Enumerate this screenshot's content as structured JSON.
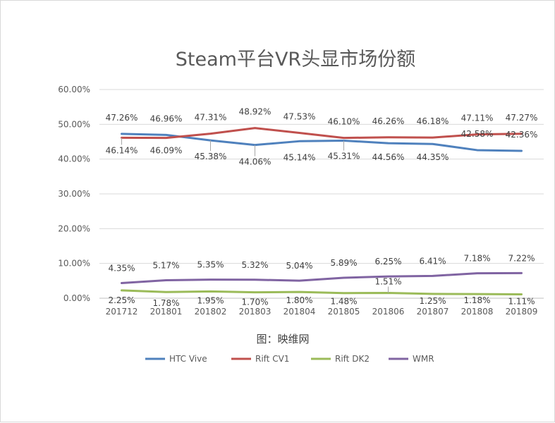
{
  "chart_data": {
    "type": "line",
    "title": "Steam平台VR头显市场份额",
    "caption": "图：映维网",
    "xlabel": "",
    "ylabel": "",
    "categories": [
      "201712",
      "201801",
      "201802",
      "201803",
      "201804",
      "201805",
      "201806",
      "201807",
      "201808",
      "201809"
    ],
    "y_ticks": [
      "0.00%",
      "10.00%",
      "20.00%",
      "30.00%",
      "40.00%",
      "50.00%",
      "60.00%"
    ],
    "ylim": [
      0,
      60
    ],
    "grid": true,
    "legend_position": "bottom",
    "series": [
      {
        "name": "HTC Vive",
        "color": "#4f81bd",
        "values": [
          47.26,
          46.96,
          45.38,
          44.06,
          45.14,
          45.31,
          44.56,
          44.35,
          42.58,
          42.36
        ],
        "labels": [
          "47.26%",
          "46.96%",
          "45.38%",
          "44.06%",
          "45.14%",
          "45.31%",
          "44.56%",
          "44.35%",
          "42.58%",
          "42.36%"
        ]
      },
      {
        "name": "Rift CV1",
        "color": "#c0504d",
        "values": [
          46.14,
          46.09,
          47.31,
          48.92,
          47.53,
          46.1,
          46.26,
          46.18,
          47.11,
          47.27
        ],
        "labels": [
          "46.14%",
          "46.09%",
          "47.31%",
          "48.92%",
          "47.53%",
          "46.10%",
          "46.26%",
          "46.18%",
          "47.11%",
          "47.27%"
        ]
      },
      {
        "name": "Rift DK2",
        "color": "#9bbb59",
        "values": [
          2.25,
          1.78,
          1.95,
          1.7,
          1.8,
          1.48,
          1.51,
          1.25,
          1.18,
          1.11
        ],
        "labels": [
          "2.25%",
          "1.78%",
          "1.95%",
          "1.70%",
          "1.80%",
          "1.48%",
          "1.51%",
          "1.25%",
          "1.18%",
          "1.11%"
        ]
      },
      {
        "name": "WMR",
        "color": "#8064a2",
        "values": [
          4.35,
          5.17,
          5.35,
          5.32,
          5.04,
          5.89,
          6.25,
          6.41,
          7.18,
          7.22
        ],
        "labels": [
          "4.35%",
          "5.17%",
          "5.35%",
          "5.32%",
          "5.04%",
          "5.89%",
          "6.25%",
          "6.41%",
          "7.18%",
          "7.22%"
        ]
      }
    ]
  }
}
